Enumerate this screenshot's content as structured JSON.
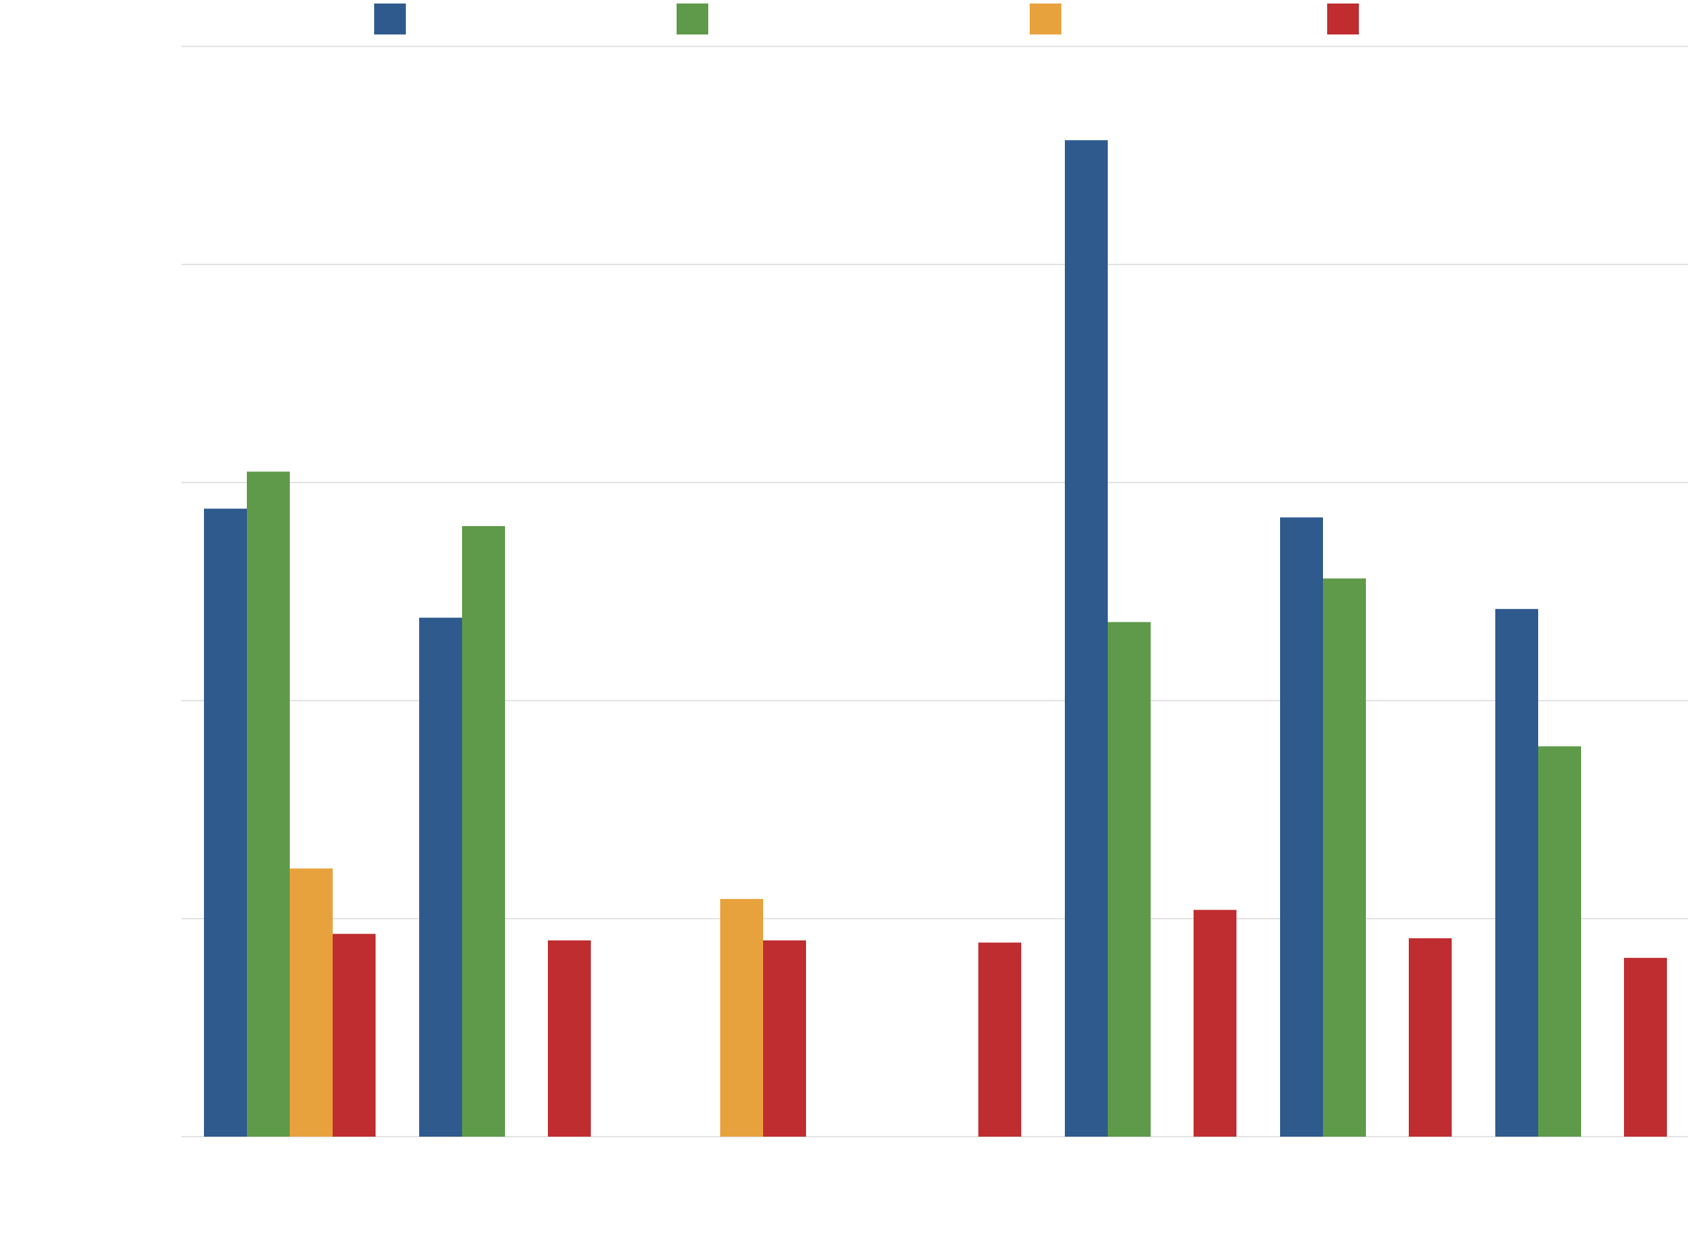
{
  "chart_data": {
    "type": "bar",
    "title": "",
    "xlabel": "",
    "ylabel": "",
    "categories": [
      "",
      "",
      "",
      "",
      "",
      "",
      "",
      ""
    ],
    "ylim": [
      0,
      5
    ],
    "grid": true,
    "legend_placement": "top",
    "series": [
      {
        "color": "#2e5a8e",
        "values": [
          2.88,
          2.38,
          0,
          0,
          4.57,
          2.84,
          2.42,
          0
        ]
      },
      {
        "color": "#5e9a49",
        "values": [
          3.05,
          2.8,
          0,
          0,
          2.36,
          2.56,
          1.79,
          0
        ]
      },
      {
        "color": "#e8a23d",
        "values": [
          1.23,
          0,
          1.09,
          0,
          0,
          0,
          0,
          0
        ]
      },
      {
        "color": "#bf2d31",
        "values": [
          0.93,
          0.9,
          0.9,
          0.89,
          1.04,
          0.91,
          0.82,
          0
        ]
      }
    ]
  }
}
